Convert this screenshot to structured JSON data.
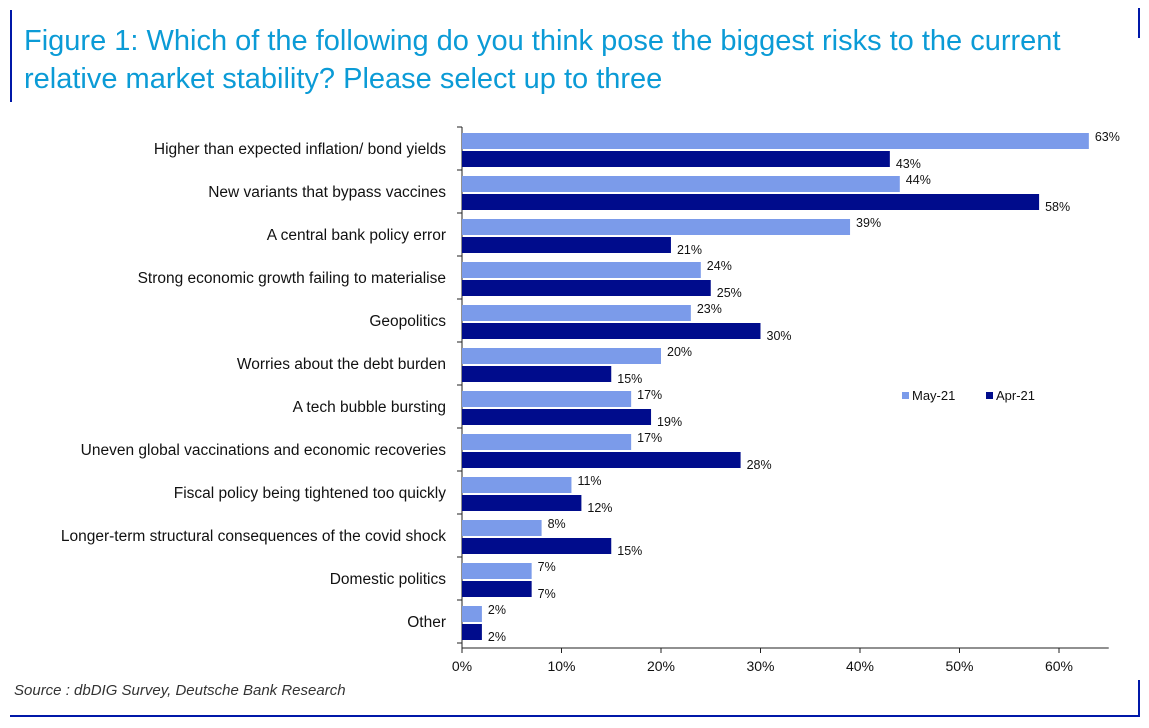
{
  "title": "Figure 1: Which of the following do you think pose the biggest risks to the current relative market stability? Please select up to three",
  "source": "Source : dbDIG Survey, Deutsche Bank Research",
  "colors": {
    "title": "#0b9bd6",
    "frame": "#0018a8"
  },
  "chart_data": {
    "type": "bar",
    "orientation": "horizontal",
    "categories": [
      "Higher than expected inflation/ bond yields",
      "New variants that bypass vaccines",
      "A central bank policy error",
      "Strong economic growth failing to materialise",
      "Geopolitics",
      "Worries about the debt burden",
      "A tech bubble bursting",
      "Uneven global vaccinations and economic recoveries",
      "Fiscal policy being tightened too quickly",
      "Longer-term structural consequences of the covid shock",
      "Domestic politics",
      "Other"
    ],
    "series": [
      {
        "name": "May-21",
        "color": "#7b9bea",
        "values": [
          63,
          44,
          39,
          24,
          23,
          20,
          17,
          17,
          11,
          8,
          7,
          2
        ]
      },
      {
        "name": "Apr-21",
        "color": "#000c8c",
        "values": [
          43,
          58,
          21,
          25,
          30,
          15,
          19,
          28,
          12,
          15,
          7,
          2
        ]
      }
    ],
    "value_suffix": "%",
    "xlim": [
      0,
      65
    ],
    "xticks": [
      0,
      10,
      20,
      30,
      40,
      50,
      60
    ],
    "xtick_labels": [
      "0%",
      "10%",
      "20%",
      "30%",
      "40%",
      "50%",
      "60%"
    ],
    "grid": false,
    "legend_position": "right"
  }
}
